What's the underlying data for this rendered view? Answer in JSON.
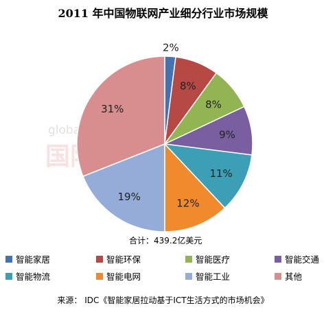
{
  "chart_data": {
    "type": "pie",
    "title": "2011 年中国物联网产业细分行业市场规模",
    "total_label": "合计：439.2亿美元",
    "source": "来源： IDC《智能家居拉动基于ICT生活方式的市场机会》",
    "watermark": {
      "top": "global sources",
      "bottom": "国际电子商情"
    },
    "categories": [
      "智能家居",
      "智能环保",
      "智能医疗",
      "智能交通",
      "智能物流",
      "智能电网",
      "智能工业",
      "其他"
    ],
    "values": [
      2,
      8,
      8,
      9,
      11,
      12,
      19,
      31
    ],
    "labels": [
      "2%",
      "8%",
      "8%",
      "9%",
      "11%",
      "12%",
      "19%",
      "31%"
    ],
    "colors": [
      "#4573b0",
      "#b74945",
      "#93b452",
      "#7a5fa0",
      "#3c9fb6",
      "#ef8b2d",
      "#95acd8",
      "#d88e8e"
    ]
  }
}
